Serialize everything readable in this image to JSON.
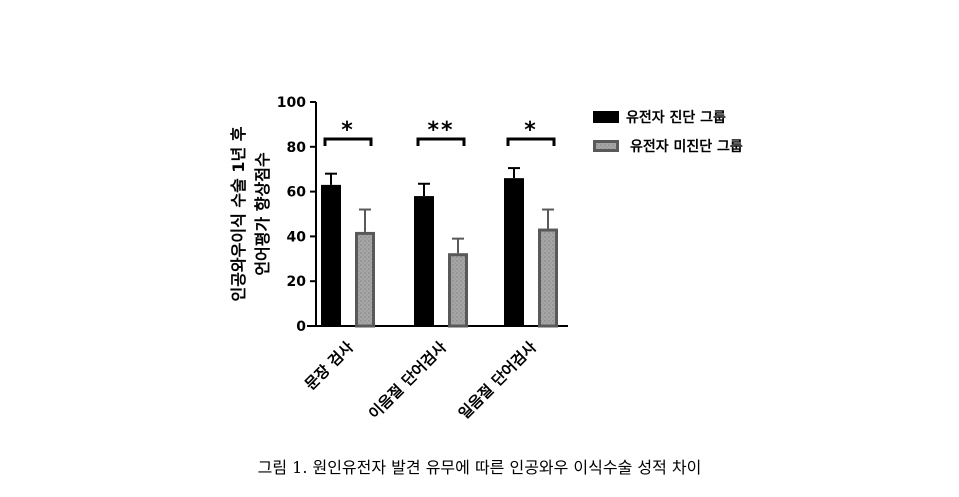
{
  "chart_data": {
    "type": "bar",
    "categories": [
      "문장 검사",
      "이음절 단어검사",
      "일음절 단어검사"
    ],
    "series": [
      {
        "name": "유전자 진단 그룹",
        "values": [
          63,
          58,
          66
        ],
        "errors": [
          5,
          5.5,
          4.5
        ],
        "color": "#000000",
        "pattern": "solid"
      },
      {
        "name": "유전자 미진단 그룹",
        "values": [
          42,
          32.5,
          43.5
        ],
        "errors": [
          10,
          6.5,
          8.5
        ],
        "color": "#a6a6a6",
        "edge": "#595959",
        "pattern": "dotted"
      }
    ],
    "significance": [
      "*",
      "**",
      "*"
    ],
    "ylabel": "인공와우이식 수술 1년 후\n언어평가 향상점수",
    "ylim": [
      0,
      100
    ],
    "yticks": [
      0,
      20,
      40,
      60,
      80,
      100
    ],
    "legend_position": "top-right"
  },
  "caption": "그림 1. 원인유전자 발견 유무에 따른 인공와우 이식수술 성적 차이"
}
